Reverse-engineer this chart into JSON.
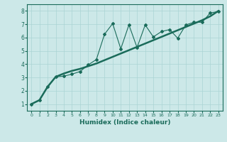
{
  "title": "",
  "xlabel": "Humidex (Indice chaleur)",
  "xlim": [
    -0.5,
    23.5
  ],
  "ylim": [
    0.5,
    8.5
  ],
  "yticks": [
    1,
    2,
    3,
    4,
    5,
    6,
    7,
    8
  ],
  "xticks": [
    0,
    1,
    2,
    3,
    4,
    5,
    6,
    7,
    8,
    9,
    10,
    11,
    12,
    13,
    14,
    15,
    16,
    17,
    18,
    19,
    20,
    21,
    22,
    23
  ],
  "bg_color": "#cce8e8",
  "line_color": "#1a6b5a",
  "grid_color": "#aad4d4",
  "trend_x": [
    0,
    1,
    2,
    3,
    4,
    5,
    6,
    7,
    8,
    9,
    10,
    11,
    12,
    13,
    14,
    15,
    16,
    17,
    18,
    19,
    20,
    21,
    22,
    23
  ],
  "trend_y": [
    1.0,
    1.3,
    2.3,
    3.05,
    3.3,
    3.5,
    3.65,
    3.85,
    4.05,
    4.3,
    4.55,
    4.8,
    5.05,
    5.3,
    5.55,
    5.8,
    6.05,
    6.3,
    6.55,
    6.8,
    7.05,
    7.3,
    7.6,
    8.0
  ],
  "zigzag_x": [
    0,
    1,
    2,
    3,
    4,
    5,
    6,
    7,
    8,
    9,
    10,
    11,
    12,
    13,
    14,
    15,
    16,
    17,
    18,
    19,
    20,
    21,
    22,
    23
  ],
  "zigzag_y": [
    1.0,
    1.3,
    2.3,
    3.05,
    3.1,
    3.25,
    3.45,
    3.95,
    4.35,
    6.25,
    7.05,
    5.15,
    6.95,
    5.25,
    6.95,
    6.05,
    6.45,
    6.6,
    5.95,
    6.95,
    7.15,
    7.15,
    7.85,
    7.95
  ]
}
